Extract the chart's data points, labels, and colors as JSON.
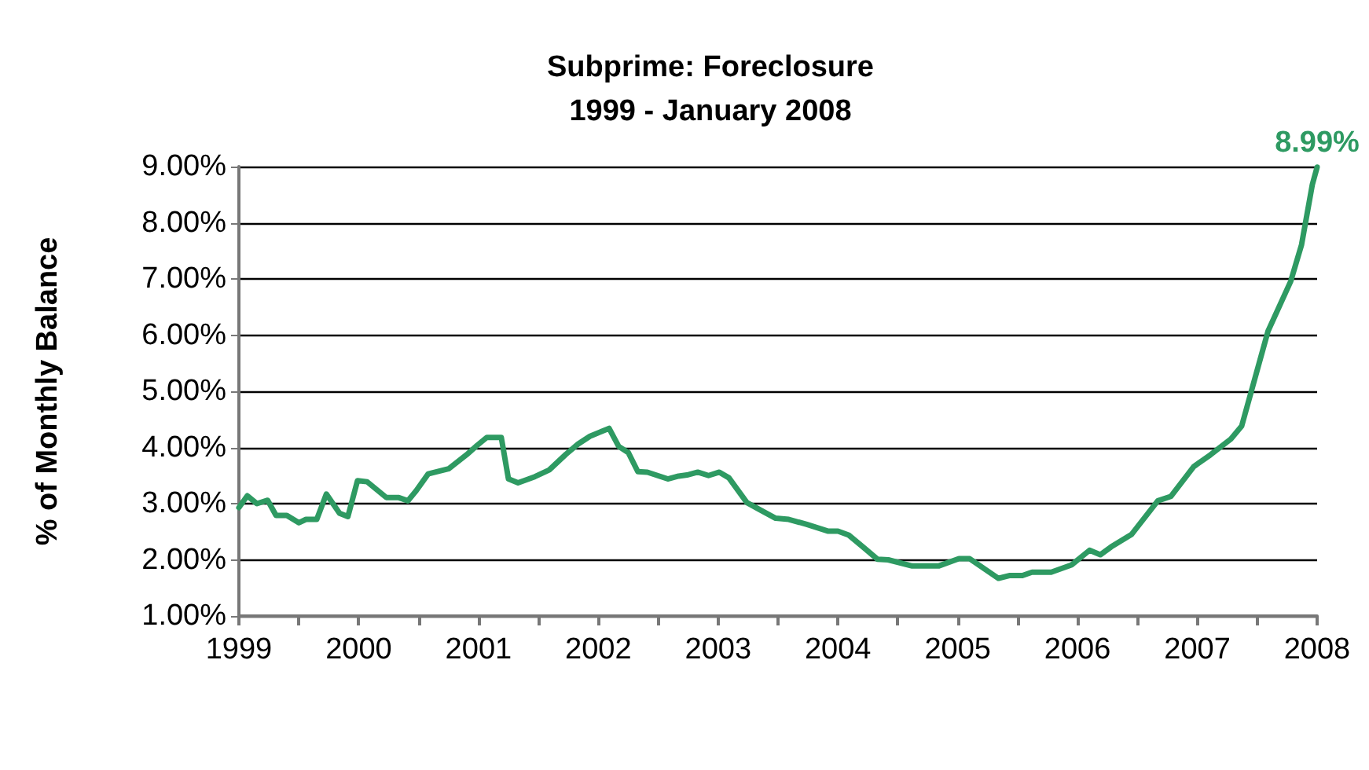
{
  "chart_data": {
    "type": "line",
    "title": "Subprime: Foreclosure\n1999 - January 2008",
    "ylabel": "% of Monthly Balance",
    "x": [
      1999.0,
      1999.07,
      1999.15,
      1999.24,
      1999.31,
      1999.4,
      1999.5,
      1999.56,
      1999.65,
      1999.73,
      1999.84,
      1999.91,
      1999.99,
      2000.07,
      2000.23,
      2000.33,
      2000.41,
      2000.48,
      2000.58,
      2000.75,
      2000.9,
      2000.99,
      2001.07,
      2001.19,
      2001.25,
      2001.33,
      2001.47,
      2001.59,
      2001.73,
      2001.83,
      2001.93,
      2002.09,
      2002.17,
      2002.25,
      2002.33,
      2002.41,
      2002.58,
      2002.67,
      2002.74,
      2002.83,
      2002.92,
      2003.01,
      2003.09,
      2003.24,
      2003.35,
      2003.48,
      2003.59,
      2003.74,
      2003.92,
      2004.0,
      2004.09,
      2004.22,
      2004.33,
      2004.42,
      2004.62,
      2004.84,
      2005.01,
      2005.1,
      2005.34,
      2005.43,
      2005.54,
      2005.62,
      2005.78,
      2005.95,
      2006.1,
      2006.19,
      2006.28,
      2006.45,
      2006.67,
      2006.78,
      2006.97,
      2007.11,
      2007.28,
      2007.37,
      2007.59,
      2007.78,
      2007.87,
      2007.96,
      2008.0
    ],
    "series": [
      {
        "color": "#2e9a62",
        "values": [
          2.93,
          3.14,
          3.0,
          3.06,
          2.79,
          2.79,
          2.66,
          2.72,
          2.72,
          3.17,
          2.83,
          2.77,
          3.41,
          3.39,
          3.11,
          3.11,
          3.05,
          3.23,
          3.53,
          3.62,
          3.87,
          4.04,
          4.18,
          4.18,
          3.44,
          3.37,
          3.48,
          3.6,
          3.88,
          4.06,
          4.2,
          4.34,
          4.02,
          3.91,
          3.57,
          3.56,
          3.44,
          3.49,
          3.51,
          3.56,
          3.5,
          3.56,
          3.46,
          3.02,
          2.89,
          2.74,
          2.72,
          2.63,
          2.51,
          2.51,
          2.44,
          2.21,
          2.01,
          2.0,
          1.89,
          1.89,
          2.02,
          2.02,
          1.67,
          1.72,
          1.72,
          1.78,
          1.78,
          1.91,
          2.17,
          2.09,
          2.23,
          2.45,
          3.05,
          3.13,
          3.66,
          3.87,
          4.15,
          4.38,
          6.07,
          6.96,
          7.61,
          8.68,
          8.99
        ]
      }
    ],
    "xlim": [
      1999,
      2008
    ],
    "xticks": [
      1999,
      {
        "value": 1999.5,
        "label": null
      },
      2000,
      {
        "value": 2000.5,
        "label": null
      },
      2001,
      {
        "value": 2001.5,
        "label": null
      },
      2002,
      {
        "value": 2002.5,
        "label": null
      },
      2003,
      {
        "value": 2003.5,
        "label": null
      },
      2004,
      {
        "value": 2004.5,
        "label": null
      },
      2005,
      {
        "value": 2005.5,
        "label": null
      },
      2006,
      {
        "value": 2006.5,
        "label": null
      },
      2007,
      {
        "value": 2007.5,
        "label": null
      },
      2008
    ],
    "ylim": [
      1,
      9
    ],
    "yticks": [
      {
        "value": 1,
        "label": "1.00%"
      },
      {
        "value": 2,
        "label": "2.00%"
      },
      {
        "value": 3,
        "label": "3.00%"
      },
      {
        "value": 4,
        "label": "4.00%"
      },
      {
        "value": 5,
        "label": "5.00%"
      },
      {
        "value": 6,
        "label": "6.00%"
      },
      {
        "value": 7,
        "label": "7.00%"
      },
      {
        "value": 8,
        "label": "8.00%"
      },
      {
        "value": 9,
        "label": "9.00%"
      }
    ],
    "annotations": [
      {
        "text": "8.99%",
        "x": 2008.0,
        "y": 8.99
      }
    ],
    "grid": "y",
    "marker": "none",
    "line_style": "solid"
  }
}
